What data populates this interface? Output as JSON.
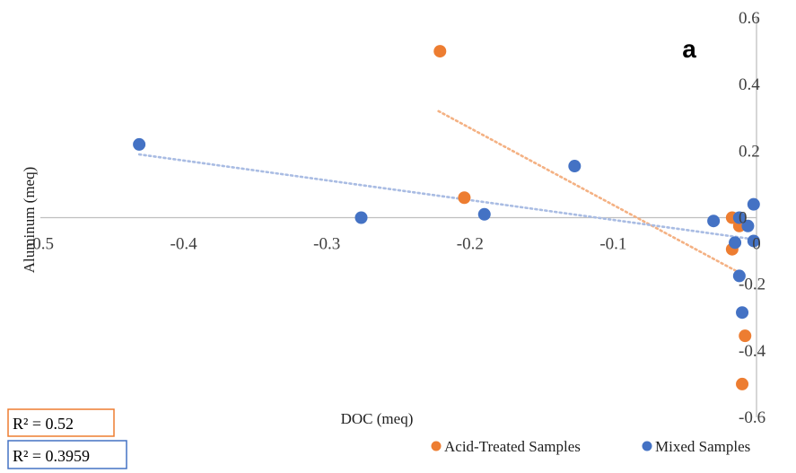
{
  "chart_data": {
    "type": "scatter",
    "panel_label": "a",
    "xlabel": "DOC (meq)",
    "ylabel": "Aluminum (meq)",
    "xlim": [
      -0.5,
      0
    ],
    "ylim": [
      -0.6,
      0.6
    ],
    "x_ticks": [
      "-0.5",
      "-0.4",
      "-0.3",
      "-0.2",
      "-0.1",
      "0"
    ],
    "y_ticks": [
      "-0.6",
      "-0.4",
      "-0.2",
      "0",
      "0.2",
      "0.4",
      "0.6"
    ],
    "grid": false,
    "legend_position": "bottom-right",
    "series": [
      {
        "name": "Acid-Treated Samples",
        "color": "#ED7D31",
        "points": [
          {
            "x": -0.221,
            "y": 0.5
          },
          {
            "x": -0.204,
            "y": 0.06
          },
          {
            "x": -0.017,
            "y": 0.0
          },
          {
            "x": -0.012,
            "y": -0.025
          },
          {
            "x": -0.017,
            "y": -0.095
          },
          {
            "x": -0.008,
            "y": -0.355
          },
          {
            "x": -0.01,
            "y": -0.5
          }
        ],
        "trendline": {
          "x": [
            -0.222,
            -0.01
          ],
          "y": [
            0.32,
            -0.17
          ],
          "r2_label": "R² = 0.52"
        }
      },
      {
        "name": "Mixed Samples",
        "color": "#4472C4",
        "points": [
          {
            "x": -0.431,
            "y": 0.22
          },
          {
            "x": -0.276,
            "y": 0.0
          },
          {
            "x": -0.19,
            "y": 0.01
          },
          {
            "x": -0.127,
            "y": 0.155
          },
          {
            "x": -0.03,
            "y": -0.01
          },
          {
            "x": -0.012,
            "y": 0.0
          },
          {
            "x": -0.006,
            "y": -0.025
          },
          {
            "x": -0.002,
            "y": 0.04
          },
          {
            "x": -0.002,
            "y": -0.07
          },
          {
            "x": -0.015,
            "y": -0.075
          },
          {
            "x": -0.012,
            "y": -0.175
          },
          {
            "x": -0.01,
            "y": -0.285
          }
        ],
        "trendline": {
          "x": [
            -0.431,
            -0.002
          ],
          "y": [
            0.19,
            -0.065
          ],
          "r2_label": "R² = 0.3959"
        }
      }
    ]
  }
}
